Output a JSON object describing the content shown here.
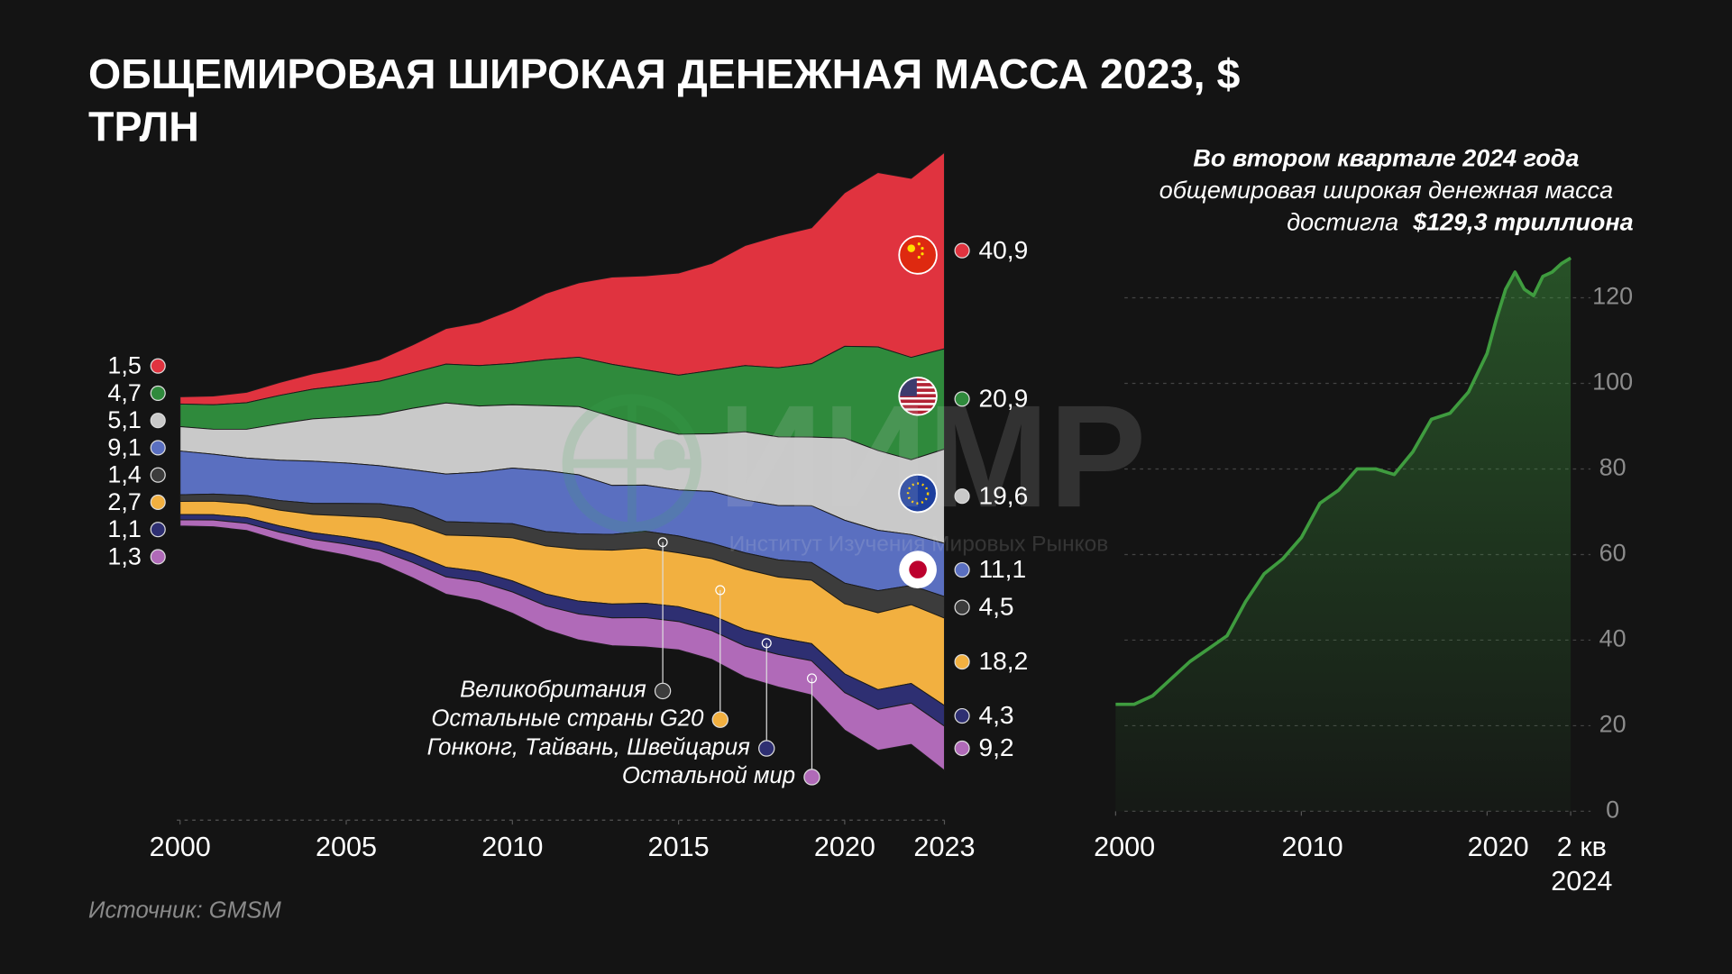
{
  "chart_data": [
    {
      "type": "stream",
      "title": "ОБЩЕМИРОВАЯ ШИРОКАЯ ДЕНЕЖНАЯ МАССА 2023, $ ТРЛН",
      "source": "Источник: GMSM",
      "x": [
        2000,
        2001,
        2002,
        2003,
        2004,
        2005,
        2006,
        2007,
        2008,
        2009,
        2010,
        2011,
        2012,
        2013,
        2014,
        2015,
        2016,
        2017,
        2018,
        2019,
        2020,
        2021,
        2022,
        2023
      ],
      "xlim": [
        2000,
        2023
      ],
      "xticks": [
        2000,
        2005,
        2010,
        2015,
        2020,
        2023
      ],
      "series": [
        {
          "color": "#e0333f",
          "values": [
            1.5,
            1.8,
            2.2,
            2.7,
            3.2,
            3.7,
            4.5,
            5.8,
            7.4,
            9.0,
            11.2,
            13.8,
            15.5,
            18.2,
            19.6,
            21.3,
            22.3,
            25.0,
            27.5,
            28.3,
            32.0,
            36.3,
            37.3,
            40.9
          ],
          "value_labels": [
            "1,5",
            null,
            null,
            null,
            null,
            null,
            null,
            null,
            null,
            null,
            null,
            null,
            null,
            null,
            null,
            null,
            null,
            null,
            null,
            null,
            null,
            null,
            null,
            "40,9"
          ]
        },
        {
          "color": "#2f8a3c",
          "values": [
            4.7,
            5.1,
            5.5,
            5.9,
            6.2,
            6.6,
            7.0,
            7.4,
            8.1,
            8.4,
            8.6,
            9.6,
            10.3,
            10.9,
            11.6,
            12.3,
            13.2,
            13.8,
            14.4,
            15.3,
            19.1,
            21.6,
            21.3,
            20.9
          ],
          "value_labels": [
            "4,7",
            null,
            null,
            null,
            null,
            null,
            null,
            null,
            null,
            null,
            null,
            null,
            null,
            null,
            null,
            null,
            null,
            null,
            null,
            null,
            null,
            null,
            null,
            "20,9"
          ]
        },
        {
          "color": "#c9c9c9",
          "values": [
            5.1,
            5.2,
            6.0,
            7.6,
            8.8,
            9.6,
            10.6,
            12.8,
            14.8,
            13.8,
            13.2,
            13.5,
            14.2,
            14.3,
            12.4,
            11.6,
            12.0,
            14.2,
            14.3,
            14.3,
            17.1,
            16.6,
            15.6,
            19.6
          ],
          "value_labels": [
            "5,1",
            null,
            null,
            null,
            null,
            null,
            null,
            null,
            null,
            null,
            null,
            null,
            null,
            null,
            null,
            null,
            null,
            null,
            null,
            null,
            null,
            null,
            null,
            "19,6"
          ]
        },
        {
          "color": "#5a6fc0",
          "values": [
            9.1,
            8.3,
            7.8,
            8.4,
            8.8,
            8.4,
            7.9,
            8.0,
            9.9,
            10.5,
            11.6,
            12.7,
            12.3,
            10.2,
            9.6,
            9.6,
            10.8,
            11.0,
            11.3,
            11.8,
            13.1,
            12.6,
            10.6,
            11.1
          ],
          "value_labels": [
            "9,1",
            null,
            null,
            null,
            null,
            null,
            null,
            null,
            null,
            null,
            null,
            null,
            null,
            null,
            null,
            null,
            null,
            null,
            null,
            null,
            null,
            null,
            null,
            "11,1"
          ]
        },
        {
          "name": "Великобритания",
          "color": "#3c3c3c",
          "values": [
            1.4,
            1.5,
            1.7,
            2.0,
            2.3,
            2.6,
            2.9,
            3.2,
            2.8,
            2.8,
            2.9,
            3.0,
            3.2,
            3.3,
            3.5,
            3.5,
            3.2,
            3.4,
            3.6,
            3.7,
            4.3,
            4.6,
            4.0,
            4.5
          ],
          "value_labels": [
            "1,4",
            null,
            null,
            null,
            null,
            null,
            null,
            null,
            null,
            null,
            null,
            null,
            null,
            null,
            null,
            null,
            null,
            null,
            null,
            null,
            null,
            null,
            null,
            "4,5"
          ]
        },
        {
          "name": "Остальные страны G20",
          "color": "#f2b040",
          "values": [
            2.7,
            2.8,
            2.9,
            3.3,
            3.8,
            4.4,
            5.2,
            6.3,
            6.7,
            7.4,
            9.0,
            10.0,
            10.8,
            11.2,
            11.5,
            11.2,
            11.8,
            12.6,
            12.6,
            13.2,
            14.6,
            16.0,
            16.4,
            18.2
          ],
          "value_labels": [
            "2,7",
            null,
            null,
            null,
            null,
            null,
            null,
            null,
            null,
            null,
            null,
            null,
            null,
            null,
            null,
            null,
            null,
            null,
            null,
            null,
            null,
            null,
            null,
            "18,2"
          ]
        },
        {
          "name": "Гонконг, Тайвань, Швейцария",
          "color": "#2e2f72",
          "values": [
            1.1,
            1.1,
            1.2,
            1.3,
            1.4,
            1.5,
            1.6,
            1.8,
            2.0,
            2.1,
            2.3,
            2.5,
            2.7,
            2.9,
            3.0,
            3.1,
            3.2,
            3.4,
            3.5,
            3.6,
            3.9,
            4.1,
            4.1,
            4.3
          ],
          "value_labels": [
            "1,1",
            null,
            null,
            null,
            null,
            null,
            null,
            null,
            null,
            null,
            null,
            null,
            null,
            null,
            null,
            null,
            null,
            null,
            null,
            null,
            null,
            null,
            null,
            "4,3"
          ]
        },
        {
          "name": "Остальной мир",
          "color": "#b06ab8",
          "values": [
            1.3,
            1.4,
            1.5,
            1.7,
            2.0,
            2.3,
            2.7,
            3.2,
            3.6,
            3.9,
            4.4,
            4.9,
            5.4,
            5.8,
            6.1,
            5.9,
            6.0,
            6.5,
            6.8,
            7.1,
            7.8,
            8.5,
            8.6,
            9.2
          ],
          "value_labels": [
            "1,3",
            null,
            null,
            null,
            null,
            null,
            null,
            null,
            null,
            null,
            null,
            null,
            null,
            null,
            null,
            null,
            null,
            null,
            null,
            null,
            null,
            null,
            null,
            "9,2"
          ]
        }
      ]
    },
    {
      "type": "line",
      "annotation": [
        "Во втором квартале 2024 года",
        "общемировая широкая денежная масса",
        "достигла",
        "$129,3 триллиона"
      ],
      "color": "#3f9c3f",
      "x": [
        2000,
        2001,
        2002,
        2003,
        2004,
        2005,
        2006,
        2007,
        2008,
        2009,
        2010,
        2011,
        2012,
        2013,
        2014,
        2015,
        2016,
        2017,
        2018,
        2019,
        2020,
        2020.5,
        2021,
        2021.5,
        2022,
        2022.5,
        2023,
        2023.5,
        2024,
        2024.5
      ],
      "values": [
        25,
        25,
        27,
        31,
        35,
        38,
        41,
        49,
        55.5,
        59,
        64,
        72,
        75,
        80,
        80,
        78.7,
        84,
        91.6,
        93,
        98,
        107,
        115,
        122,
        126,
        122,
        120.5,
        125,
        126,
        128,
        129.3
      ],
      "xlim": [
        2000,
        2024.5
      ],
      "xticks": [
        2000,
        2010,
        2020,
        {
          "value": 2024.5,
          "label": "2 кв 2024"
        }
      ],
      "ylim": [
        0,
        130
      ],
      "yticks": [
        0,
        20,
        40,
        60,
        80,
        100,
        120
      ],
      "grid": true
    }
  ],
  "watermark": {
    "logo": "ИИМР",
    "subtitle": "Институт Изучения Мировых Рынков"
  }
}
